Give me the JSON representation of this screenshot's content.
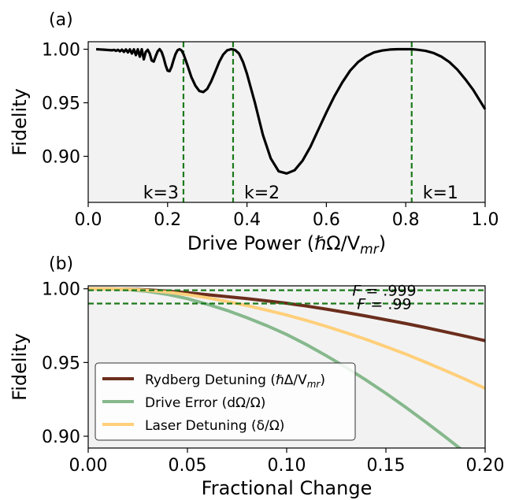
{
  "chart_data": [
    {
      "panel_label": "(a)",
      "type": "line",
      "xlabel": "Drive Power (ℏΩ/V",
      "xlabel_sub": "mr",
      "xlabel_close": ")",
      "ylabel": "Fidelity",
      "xlim": [
        0.0,
        1.0
      ],
      "ylim": [
        0.857,
        1.007
      ],
      "xticks": [
        "0.0",
        "0.2",
        "0.4",
        "0.6",
        "0.8",
        "1.0"
      ],
      "yticks": [
        "0.90",
        "0.95",
        "1.00"
      ],
      "grid": false,
      "background": "#f2f2f2",
      "line_color": "#000000",
      "series": [
        {
          "x": [
            0.02,
            0.03,
            0.04,
            0.05,
            0.06,
            0.065,
            0.07,
            0.075,
            0.08,
            0.085,
            0.09,
            0.095,
            0.1,
            0.105,
            0.11,
            0.115,
            0.12,
            0.125,
            0.13,
            0.135,
            0.14,
            0.145,
            0.15,
            0.155,
            0.16,
            0.165,
            0.17,
            0.175,
            0.18,
            0.185,
            0.19,
            0.195,
            0.2,
            0.205,
            0.21,
            0.215,
            0.22,
            0.225,
            0.23,
            0.235,
            0.24,
            0.25,
            0.26,
            0.27,
            0.28,
            0.29,
            0.3,
            0.31,
            0.32,
            0.33,
            0.34,
            0.35,
            0.36,
            0.365,
            0.37,
            0.38,
            0.39,
            0.4,
            0.42,
            0.44,
            0.46,
            0.48,
            0.5,
            0.52,
            0.54,
            0.56,
            0.58,
            0.6,
            0.62,
            0.64,
            0.66,
            0.68,
            0.7,
            0.72,
            0.74,
            0.76,
            0.78,
            0.8,
            0.815,
            0.83,
            0.85,
            0.87,
            0.89,
            0.91,
            0.93,
            0.95,
            0.97,
            1.0
          ],
          "y": [
            1.0,
            0.9998,
            0.9996,
            0.9993,
            0.999,
            0.9994,
            0.9985,
            0.9995,
            0.998,
            0.9996,
            0.9975,
            0.9998,
            0.997,
            0.9999,
            0.996,
            0.9999,
            0.9945,
            0.9999,
            0.993,
            1.0,
            0.9905,
            0.9975,
            0.9995,
            0.996,
            0.9895,
            0.9885,
            0.9935,
            0.998,
            1.0,
            0.9975,
            0.992,
            0.985,
            0.98,
            0.9795,
            0.9835,
            0.99,
            0.9955,
            0.999,
            1.0,
            0.999,
            0.9955,
            0.985,
            0.974,
            0.966,
            0.961,
            0.96,
            0.963,
            0.97,
            0.979,
            0.988,
            0.995,
            0.999,
            1.0,
            0.9998,
            0.9992,
            0.996,
            0.988,
            0.977,
            0.95,
            0.92,
            0.898,
            0.886,
            0.884,
            0.887,
            0.896,
            0.909,
            0.925,
            0.941,
            0.956,
            0.969,
            0.98,
            0.988,
            0.9935,
            0.997,
            0.9988,
            0.9997,
            1.0,
            1.0,
            1.0,
            0.9995,
            0.9985,
            0.9965,
            0.993,
            0.988,
            0.981,
            0.972,
            0.962,
            0.944
          ]
        }
      ],
      "vlines": [
        {
          "x": 0.24,
          "label": "k=3"
        },
        {
          "x": 0.365,
          "label": "k=2"
        },
        {
          "x": 0.815,
          "label": "k=1"
        }
      ],
      "vline_color": "#1a7a1a"
    },
    {
      "panel_label": "(b)",
      "type": "line",
      "xlabel": "Fractional Change",
      "ylabel": "Fidelity",
      "xlim": [
        0.0,
        0.2
      ],
      "ylim": [
        0.892,
        1.002
      ],
      "xticks": [
        "0.00",
        "0.05",
        "0.10",
        "0.15",
        "0.20"
      ],
      "yticks": [
        "0.90",
        "0.95",
        "1.00"
      ],
      "grid": false,
      "background": "#f2f2f2",
      "legend_position": "lower-left",
      "hlines": [
        {
          "y": 0.999,
          "label_main": "F",
          "label_rest": " = .999"
        },
        {
          "y": 0.99,
          "label_main": "F",
          "label_rest": " = .99"
        }
      ],
      "hline_color": "#1a7a1a",
      "x": [
        0.0,
        0.01,
        0.02,
        0.03,
        0.04,
        0.05,
        0.06,
        0.07,
        0.08,
        0.09,
        0.1,
        0.11,
        0.12,
        0.13,
        0.14,
        0.15,
        0.16,
        0.17,
        0.18,
        0.19,
        0.2
      ],
      "series": [
        {
          "name": "Rydberg Detuning (ℏΔ/V",
          "name_sub": "mr",
          "name_close": ")",
          "color": "#6b2d1c",
          "values": [
            1.0,
            1.0,
            0.9998,
            0.9993,
            0.9984,
            0.9973,
            0.996,
            0.9947,
            0.9933,
            0.9918,
            0.9902,
            0.9883,
            0.9862,
            0.9839,
            0.9815,
            0.979,
            0.9764,
            0.9737,
            0.9708,
            0.9679,
            0.9648
          ]
        },
        {
          "name": "Drive Error (dΩ/Ω)",
          "color": "#86b88c",
          "values": [
            1.0,
            1.0,
            0.9995,
            0.9982,
            0.9962,
            0.9933,
            0.9895,
            0.9853,
            0.9804,
            0.975,
            0.969,
            0.9621,
            0.9546,
            0.9466,
            0.9381,
            0.9291,
            0.9196,
            0.9097,
            0.8995,
            0.8889,
            0.878
          ]
        },
        {
          "name": "Laser Detuning (δ/Ω)",
          "color": "#ffcf7a",
          "values": [
            1.0,
            1.0,
            0.9997,
            0.9989,
            0.9977,
            0.996,
            0.9939,
            0.9914,
            0.9886,
            0.9855,
            0.9822,
            0.9785,
            0.9745,
            0.9702,
            0.9657,
            0.9608,
            0.9557,
            0.9502,
            0.9445,
            0.9386,
            0.9325
          ]
        }
      ]
    }
  ]
}
